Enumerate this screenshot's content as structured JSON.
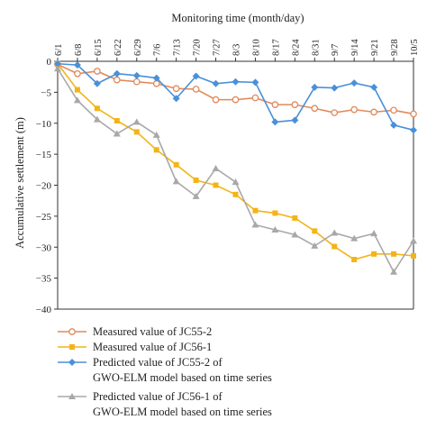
{
  "chart_data": {
    "type": "line",
    "xlabel": "Monitoring time (month/day)",
    "ylabel": "Accumulative settlement (m)",
    "ylim": [
      -40,
      0
    ],
    "yticks": [
      0,
      -5,
      -10,
      -15,
      -20,
      -25,
      -30,
      -35,
      -40
    ],
    "x_axis_position": "top",
    "categories": [
      "6/1",
      "6/8",
      "6/15",
      "6/22",
      "6/29",
      "7/6",
      "7/13",
      "7/20",
      "7/27",
      "8/3",
      "8/10",
      "8/17",
      "8/24",
      "8/31",
      "9/7",
      "9/14",
      "9/21",
      "9/28",
      "10/5"
    ],
    "grid": false,
    "legend_position": "bottom-left",
    "series": [
      {
        "name": "Measured value of JC55-2",
        "color": "#E08A5B",
        "marker": "circle-open",
        "values": [
          -0.5,
          -2.0,
          -1.6,
          -3.0,
          -3.3,
          -3.6,
          -4.4,
          -4.5,
          -6.2,
          -6.2,
          -5.9,
          -7.0,
          -7.0,
          -7.6,
          -8.3,
          -7.8,
          -8.2,
          -7.9,
          -8.5
        ]
      },
      {
        "name": "Measured value of JC56-1",
        "color": "#F2B418",
        "marker": "square",
        "values": [
          -0.4,
          -4.6,
          -7.6,
          -9.6,
          -11.4,
          -14.3,
          -16.7,
          -19.2,
          -20.0,
          -21.5,
          -24.1,
          -24.5,
          -25.3,
          -27.4,
          -29.9,
          -32.0,
          -31.1,
          -31.1,
          -31.4
        ]
      },
      {
        "name": "Predicted value of JC55-2 of GWO-ELM model based on time series",
        "color": "#4A90D9",
        "marker": "diamond",
        "values": [
          -0.4,
          -0.6,
          -3.6,
          -2.0,
          -2.3,
          -2.7,
          -6.0,
          -2.4,
          -3.6,
          -3.3,
          -3.4,
          -9.8,
          -9.5,
          -4.2,
          -4.3,
          -3.5,
          -4.2,
          -10.3,
          -11.1
        ]
      },
      {
        "name": "Predicted value of JC56-1 of GWO-ELM model based on time series",
        "color": "#A8A8A8",
        "marker": "triangle",
        "values": [
          -1.2,
          -6.3,
          -9.4,
          -11.7,
          -9.8,
          -11.9,
          -19.4,
          -21.8,
          -17.3,
          -19.5,
          -26.4,
          -27.2,
          -28.0,
          -29.8,
          -27.7,
          -28.6,
          -27.8,
          -34.0,
          -29.0
        ]
      }
    ],
    "legend_labels": [
      [
        "Measured value of JC55-2"
      ],
      [
        "Measured value of JC56-1"
      ],
      [
        "Predicted value of JC55-2 of",
        "GWO-ELM model based on time series"
      ],
      [
        "Predicted value of JC56-1 of",
        "GWO-ELM model based on time series"
      ]
    ]
  }
}
